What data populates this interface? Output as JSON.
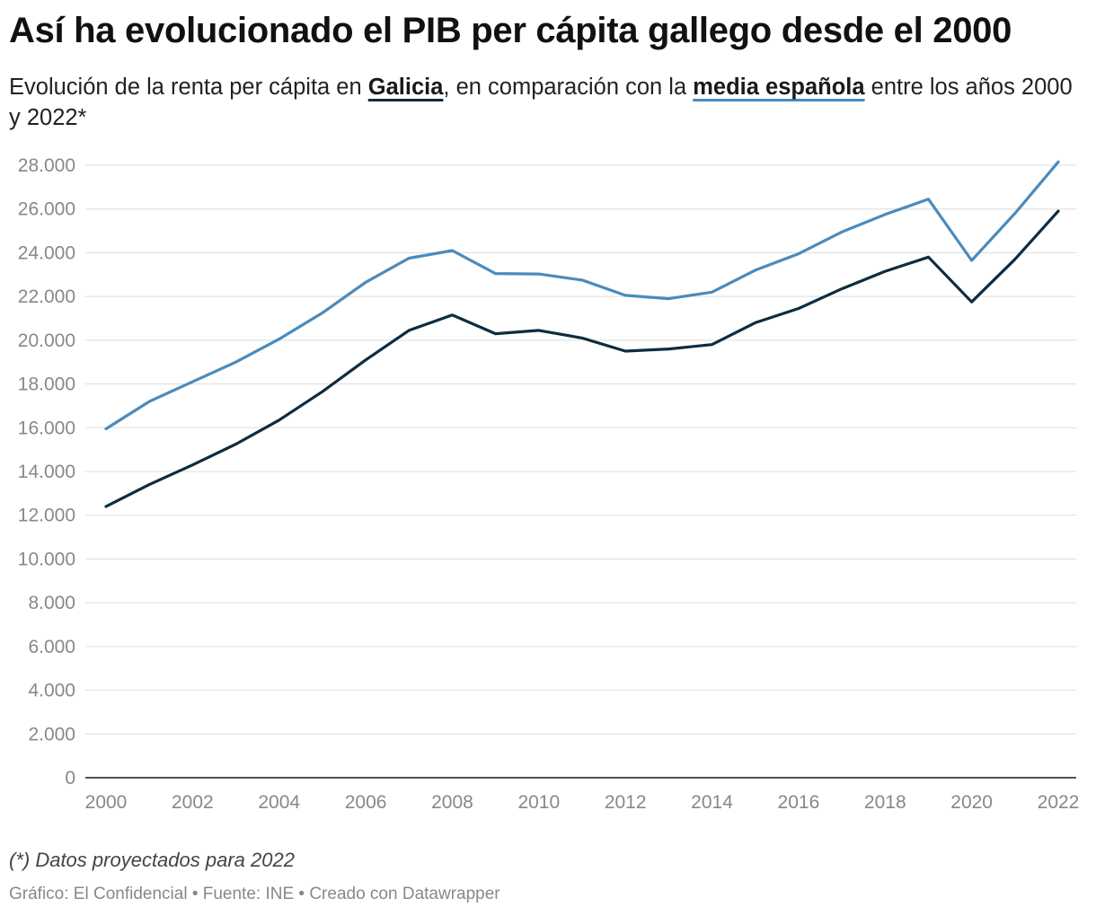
{
  "title": "Así ha evolucionado el PIB per cápita gallego desde el 2000",
  "subtitle": {
    "part1": "Evolución de la renta per cápita en ",
    "legend_galicia": "Galicia",
    "part2": ", en comparación con la ",
    "legend_spain": "media española",
    "part3": " entre los años 2000 y 2022*"
  },
  "note": "(*) Datos proyectados para 2022",
  "footer": "Gráfico: El Confidencial • Fuente: INE • Creado con Datawrapper",
  "colors": {
    "galicia": "#0d2c40",
    "spain": "#4a8bbc",
    "grid": "#dddddd",
    "axis_text": "#888888"
  },
  "chart_data": {
    "type": "line",
    "x": [
      2000,
      2001,
      2002,
      2003,
      2004,
      2005,
      2006,
      2007,
      2008,
      2009,
      2010,
      2011,
      2012,
      2013,
      2014,
      2015,
      2016,
      2017,
      2018,
      2019,
      2020,
      2021,
      2022
    ],
    "x_ticks": [
      "2000",
      "2002",
      "2004",
      "2006",
      "2008",
      "2010",
      "2012",
      "2014",
      "2016",
      "2018",
      "2020",
      "2022"
    ],
    "y_ticks": [
      "0",
      "2.000",
      "4.000",
      "6.000",
      "8.000",
      "10.000",
      "12.000",
      "14.000",
      "16.000",
      "18.000",
      "20.000",
      "22.000",
      "24.000",
      "26.000",
      "28.000"
    ],
    "ylim": [
      0,
      28000
    ],
    "grid": true,
    "series": [
      {
        "name": "media española",
        "color": "#4a8bbc",
        "values": [
          15950,
          17200,
          18100,
          19000,
          20050,
          21250,
          22650,
          23750,
          24100,
          23050,
          23030,
          22750,
          22050,
          21900,
          22200,
          23200,
          23950,
          24950,
          25750,
          26450,
          23650,
          25800,
          28150
        ]
      },
      {
        "name": "Galicia",
        "color": "#0d2c40",
        "values": [
          12400,
          13400,
          14300,
          15250,
          16350,
          17650,
          19100,
          20450,
          21150,
          20300,
          20450,
          20100,
          19500,
          19600,
          19800,
          20800,
          21450,
          22350,
          23150,
          23800,
          21750,
          23700,
          25900
        ]
      }
    ]
  }
}
